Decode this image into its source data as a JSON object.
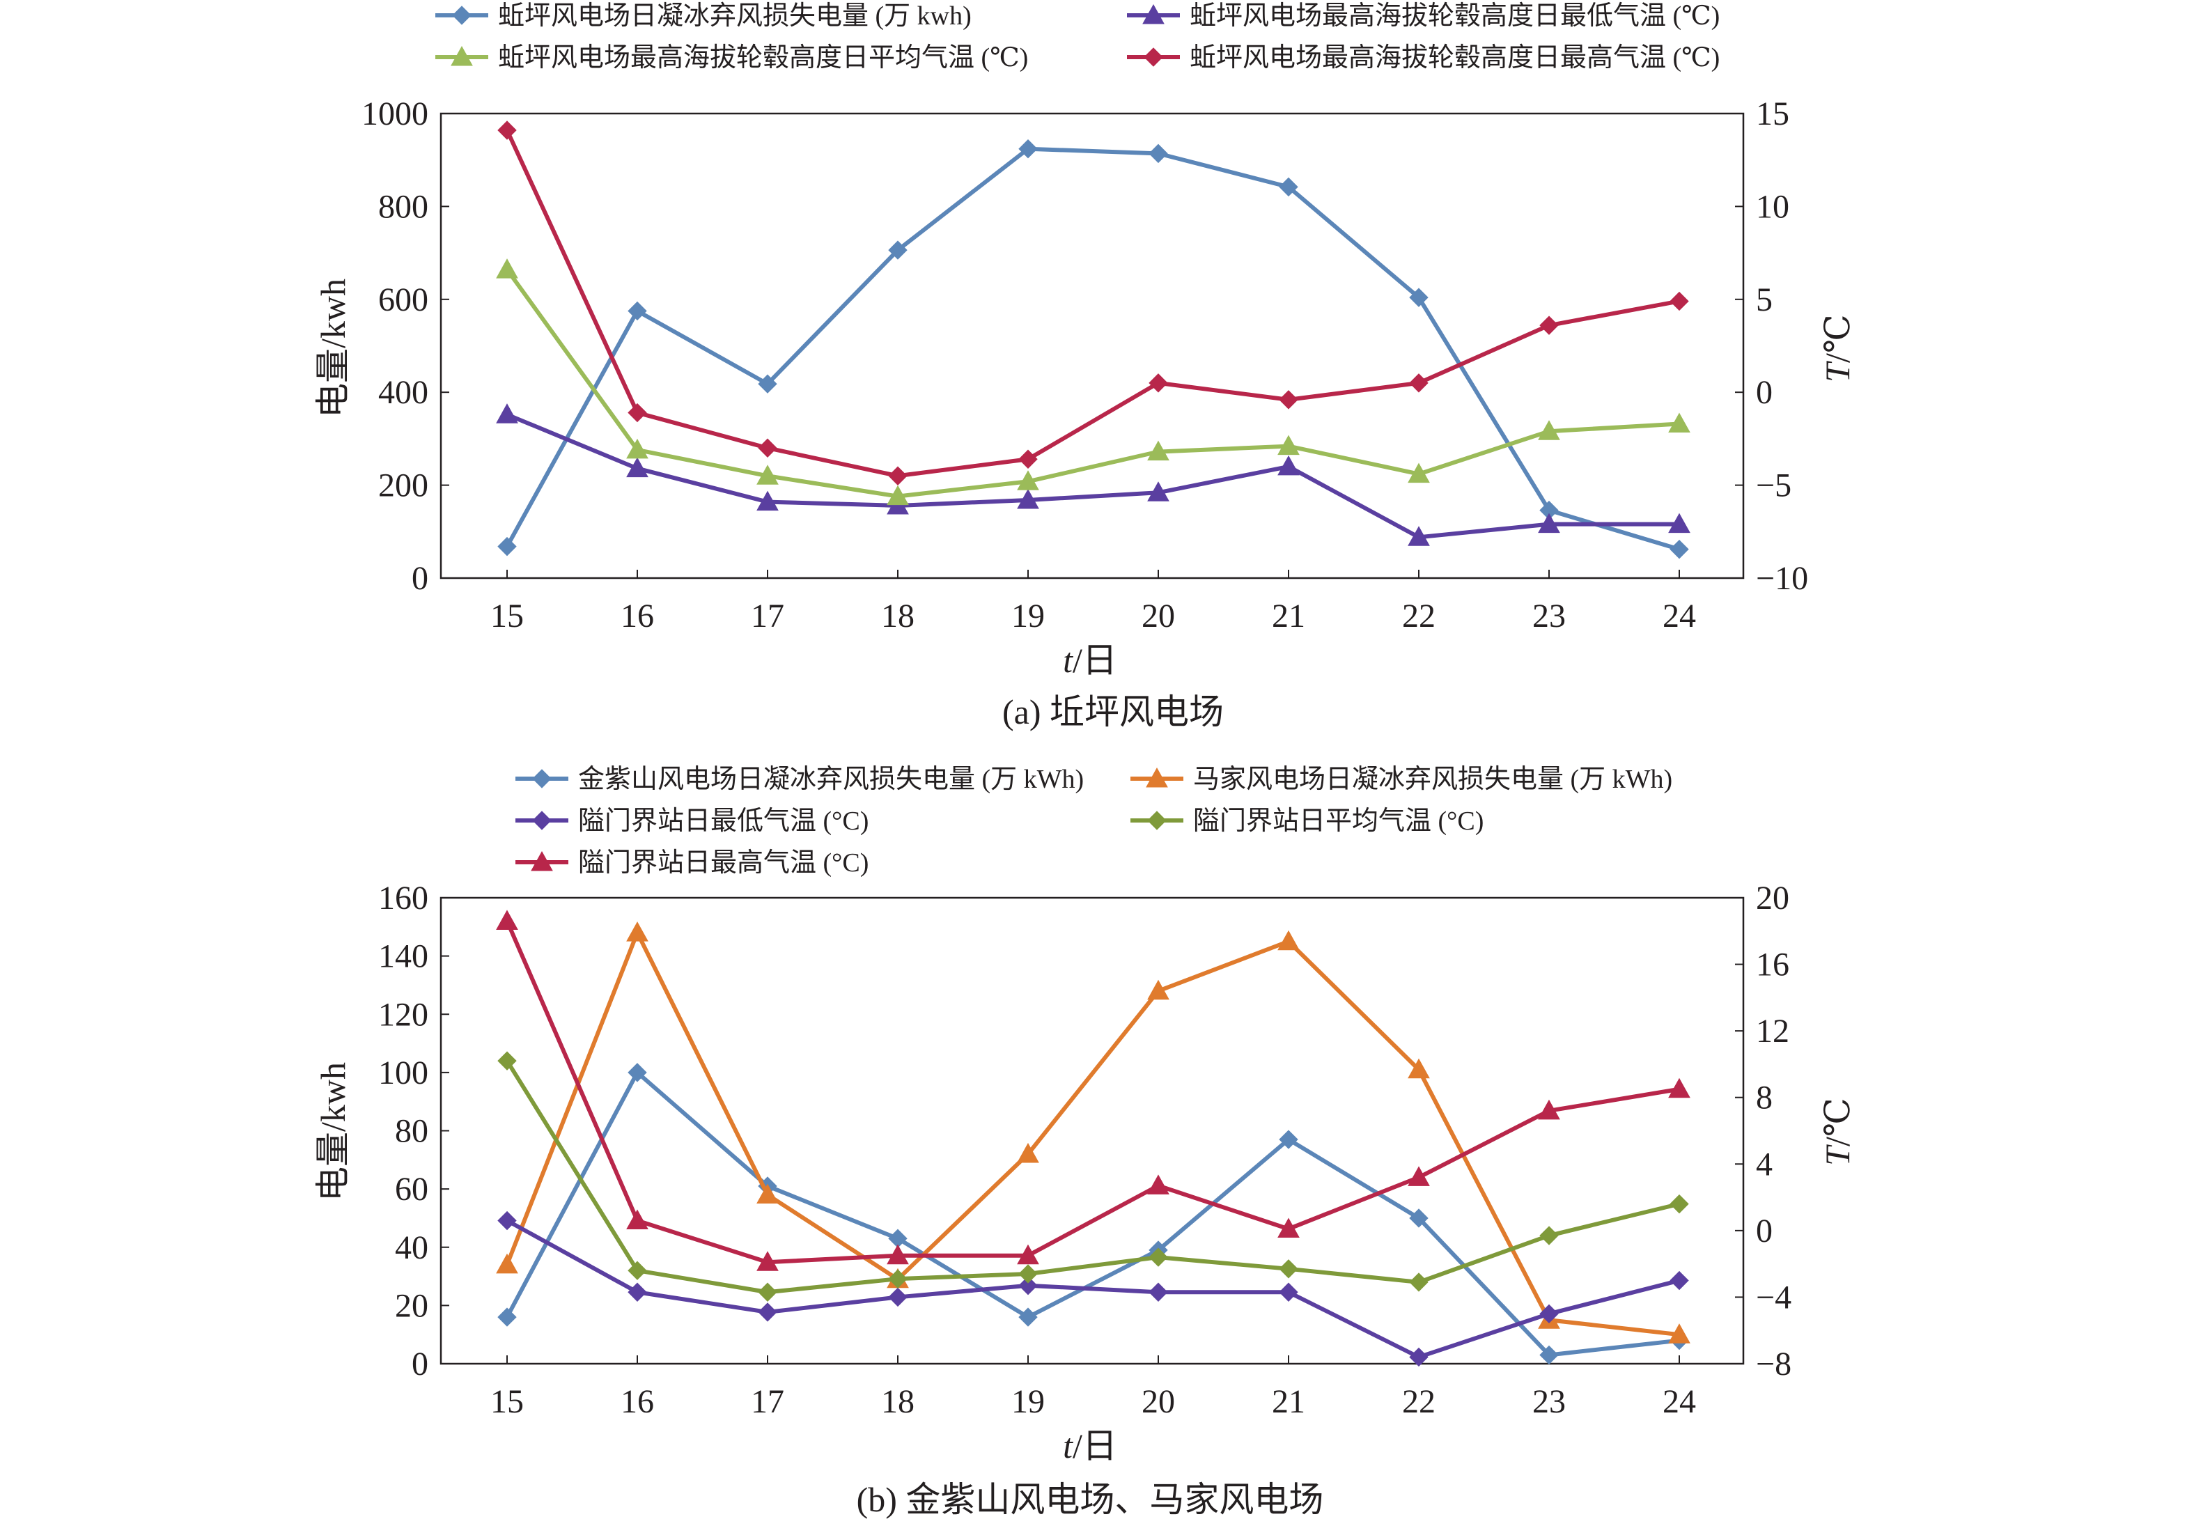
{
  "figure": {
    "panel_a_caption": "(a) 坵坪风电场",
    "panel_b_caption": "(b) 金紫山风电场、马家风电场"
  },
  "chart_data": [
    {
      "type": "line",
      "x": [
        15,
        16,
        17,
        18,
        19,
        20,
        21,
        22,
        23,
        24
      ],
      "xlabel_italic": "t",
      "xlabel_unit": "/日",
      "ylabel_left": "电量/kwh",
      "ylabel_right_italic": "T",
      "ylabel_right_unit": "/℃",
      "ylim_left": [
        0,
        1000
      ],
      "yticks_left": [
        0,
        200,
        400,
        600,
        800,
        1000
      ],
      "ylim_right": [
        -10,
        15
      ],
      "yticks_right": [
        -10,
        -5,
        0,
        5,
        10,
        15
      ],
      "ytick_labels_right": [
        "−10",
        "−5",
        "0",
        "5",
        "10",
        "15"
      ],
      "grid": false,
      "legend_position": "top",
      "series": [
        {
          "name": "蚯坪风电场日凝冰弃风损失电量 (万 kwh)",
          "axis": "left",
          "marker": "diamond",
          "color": "#5b86b8",
          "values": [
            68,
            575,
            418,
            706,
            924,
            914,
            842,
            604,
            146,
            62
          ]
        },
        {
          "name": "蚯坪风电场最高海拔轮毂高度日最低气温 (℃)",
          "axis": "right",
          "marker": "triangle",
          "color": "#5a3fa0",
          "values": [
            -1.2,
            -4.1,
            -5.9,
            -6.1,
            -5.8,
            -5.4,
            -4.0,
            -7.8,
            -7.1,
            -7.1
          ]
        },
        {
          "name": "蚯坪风电场最高海拔轮毂高度日平均气温 (℃)",
          "axis": "right",
          "marker": "triangle",
          "color": "#9bbb59",
          "values": [
            6.6,
            -3.1,
            -4.5,
            -5.6,
            -4.8,
            -3.2,
            -2.9,
            -4.4,
            -2.1,
            -1.7
          ]
        },
        {
          "name": "蚯坪风电场最高海拔轮毂高度日最高气温 (℃)",
          "axis": "right",
          "marker": "diamond",
          "color": "#b8264a",
          "values": [
            14.1,
            -1.1,
            -3.0,
            -4.5,
            -3.6,
            0.5,
            -0.4,
            0.5,
            3.6,
            4.9
          ]
        }
      ]
    },
    {
      "type": "line",
      "x": [
        15,
        16,
        17,
        18,
        19,
        20,
        21,
        22,
        23,
        24
      ],
      "xlabel_italic": "t",
      "xlabel_unit": "/日",
      "ylabel_left": "电量/kwh",
      "ylabel_right_italic": "T",
      "ylabel_right_unit": "/℃",
      "ylim_left": [
        0,
        160
      ],
      "yticks_left": [
        0,
        20,
        40,
        60,
        80,
        100,
        120,
        140,
        160
      ],
      "ylim_right": [
        -8,
        20
      ],
      "yticks_right": [
        -8,
        -4,
        0,
        4,
        8,
        12,
        16,
        20
      ],
      "ytick_labels_right": [
        "−8",
        "−4",
        "0",
        "4",
        "8",
        "12",
        "16",
        "20"
      ],
      "grid": false,
      "legend_position": "top",
      "series": [
        {
          "name": "金紫山风电场日凝冰弃风损失电量 (万 kWh)",
          "axis": "left",
          "marker": "diamond",
          "color": "#5b86b8",
          "values": [
            16,
            100,
            61,
            43,
            16,
            39,
            77,
            50,
            3,
            8
          ]
        },
        {
          "name": "马家风电场日凝冰弃风损失电量 (万 kWh)",
          "axis": "left",
          "marker": "triangle",
          "color": "#e07b2d",
          "values": [
            34,
            148,
            58,
            29,
            72,
            128,
            145,
            101,
            15,
            10
          ]
        },
        {
          "name": "隘门界站日最低气温 (°C)",
          "axis": "right",
          "marker": "diamond",
          "color": "#5a3fa0",
          "values": [
            0.6,
            -3.7,
            -4.9,
            -4.0,
            -3.3,
            -3.7,
            -3.7,
            -7.6,
            -5.0,
            -3.0
          ]
        },
        {
          "name": "隘门界站日平均气温 (°C)",
          "axis": "right",
          "marker": "diamond",
          "color": "#7f9a3a",
          "values": [
            10.2,
            -2.4,
            -3.7,
            -2.9,
            -2.6,
            -1.6,
            -2.3,
            -3.1,
            -0.3,
            1.6
          ]
        },
        {
          "name": "隘门界站日最高气温 (°C)",
          "axis": "right",
          "marker": "triangle",
          "color": "#b8264a",
          "values": [
            18.6,
            0.6,
            -1.9,
            -1.5,
            -1.5,
            2.7,
            0.1,
            3.2,
            7.2,
            8.5
          ]
        }
      ]
    }
  ]
}
